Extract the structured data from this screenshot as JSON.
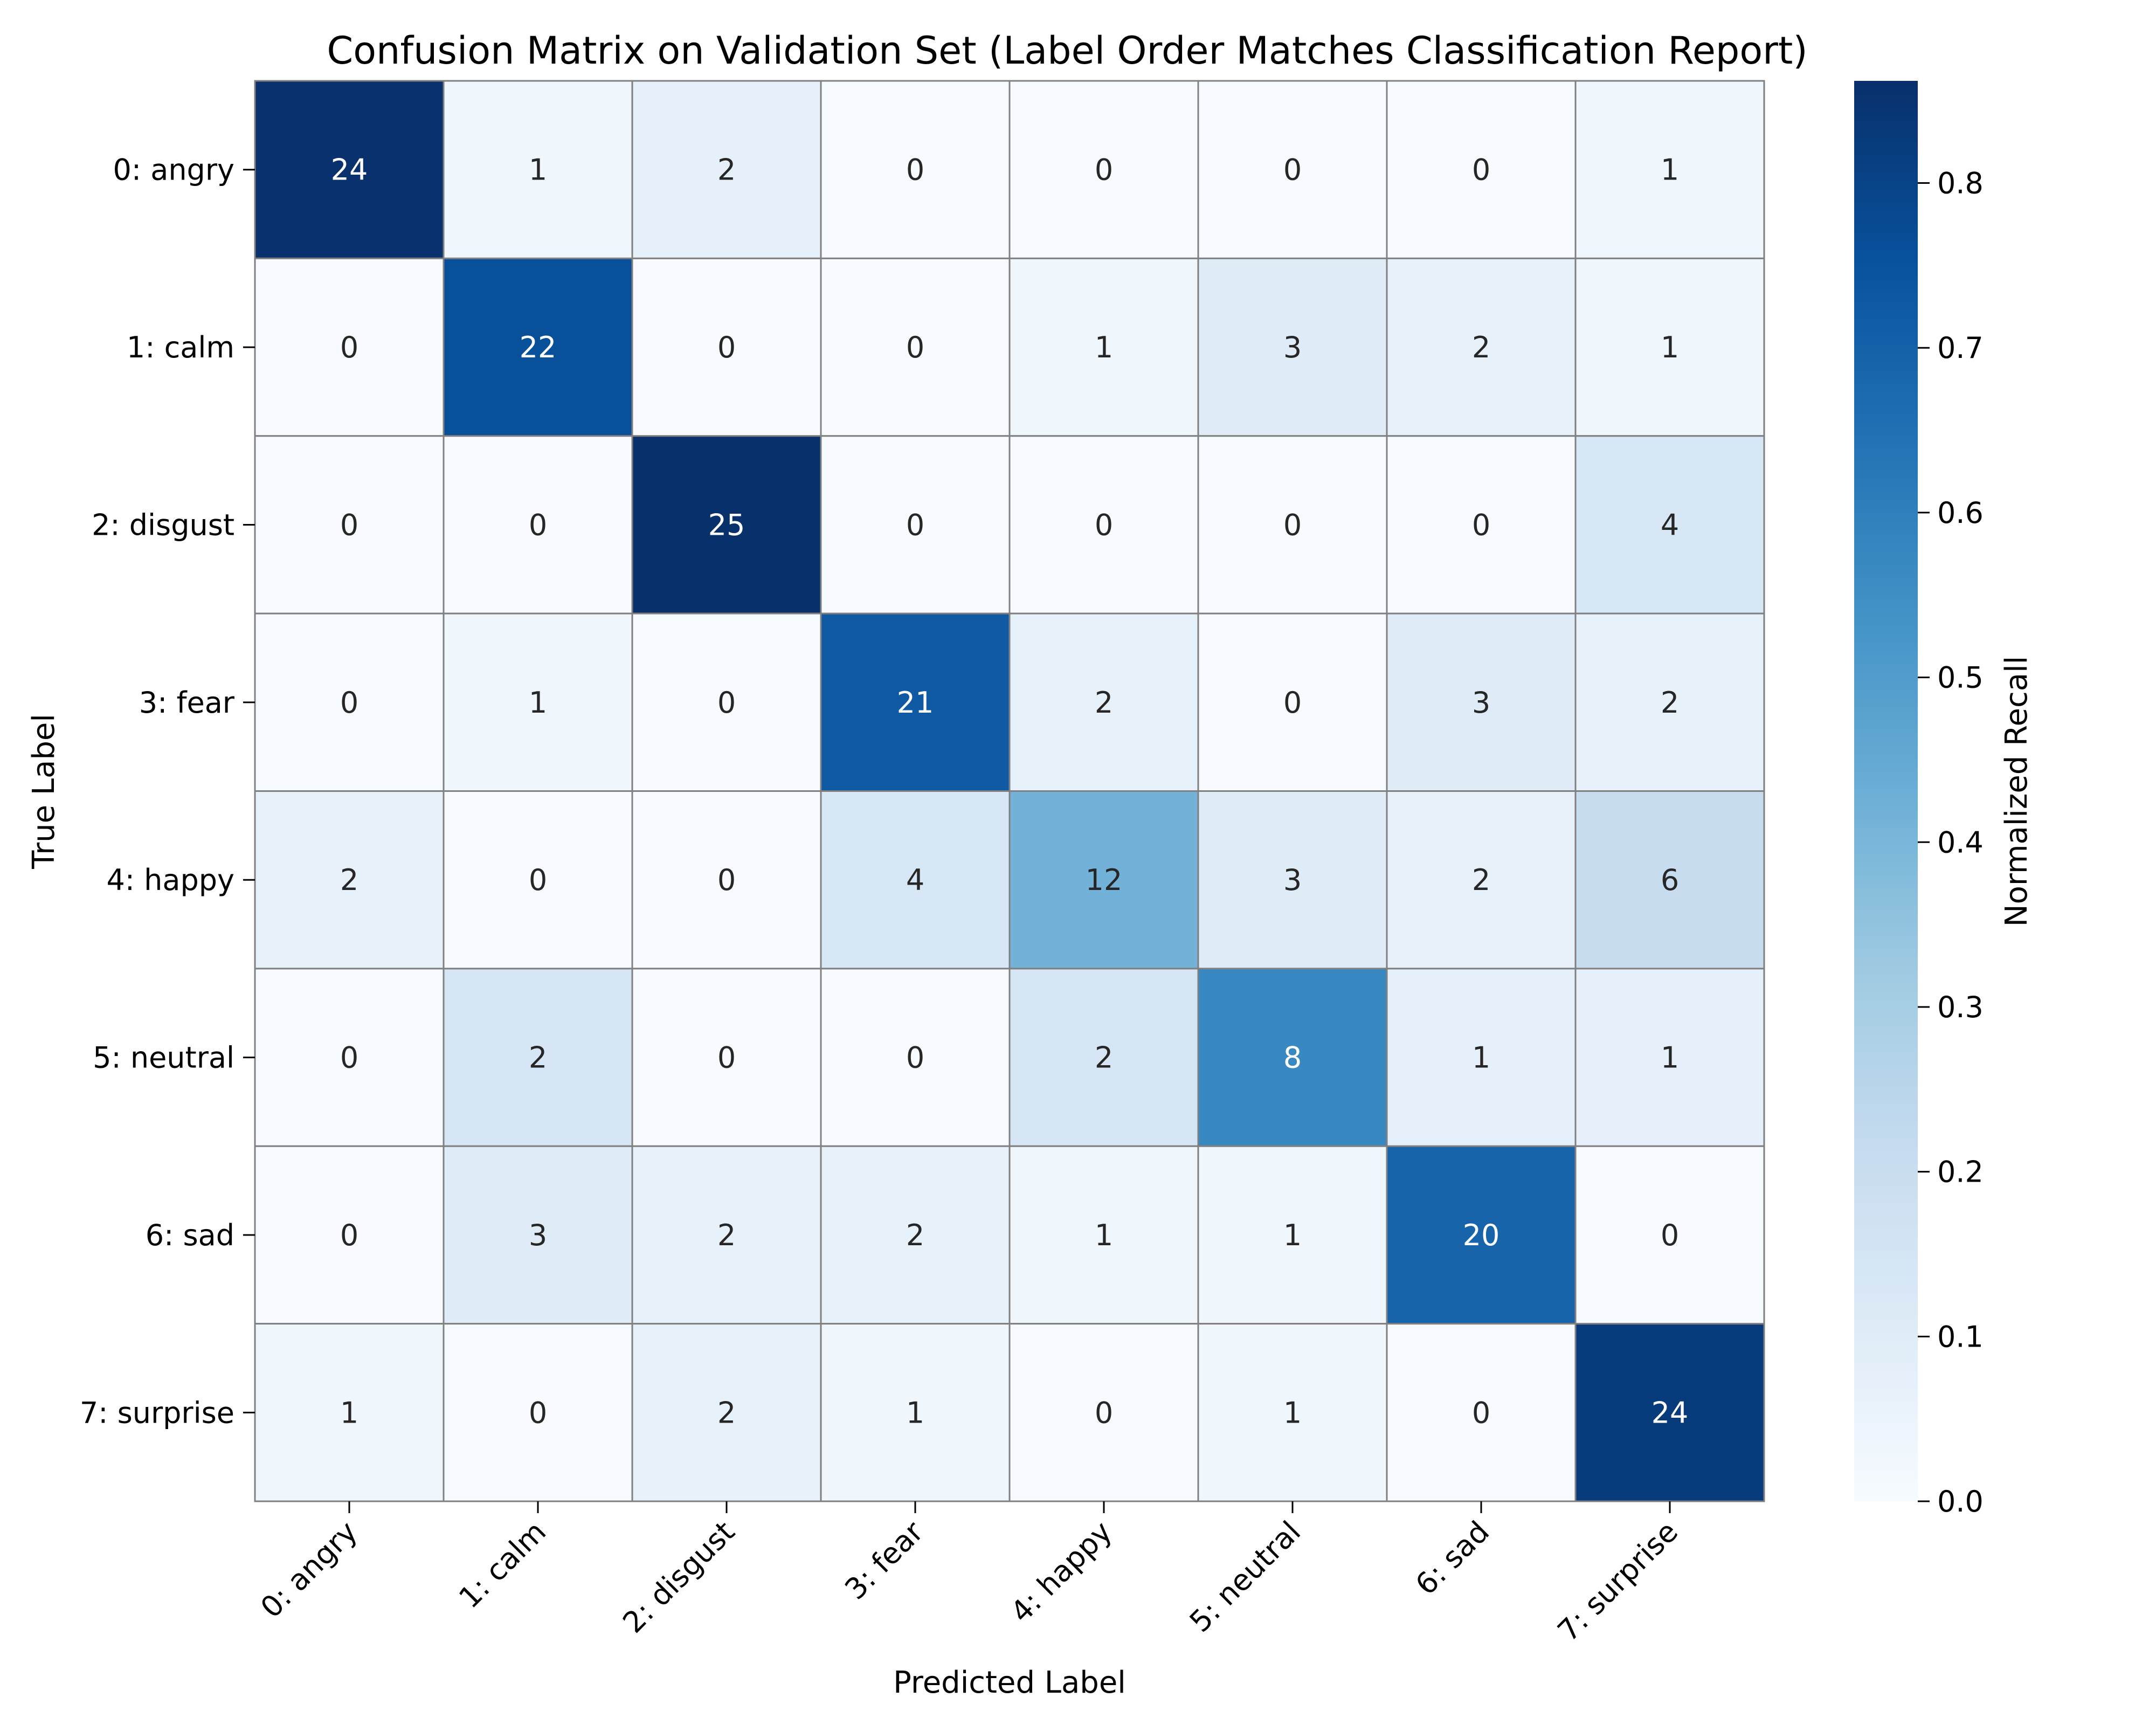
{
  "chart_data": {
    "type": "heatmap",
    "title": "Confusion Matrix on Validation Set (Label Order Matches Classification Report)",
    "xlabel": "Predicted Label",
    "ylabel": "True Label",
    "x_categories": [
      "0: angry",
      "1: calm",
      "2: disgust",
      "3: fear",
      "4: happy",
      "5: neutral",
      "6: sad",
      "7: surprise"
    ],
    "y_categories": [
      "0: angry",
      "1: calm",
      "2: disgust",
      "3: fear",
      "4: happy",
      "5: neutral",
      "6: sad",
      "7: surprise"
    ],
    "values": [
      [
        24,
        1,
        2,
        0,
        0,
        0,
        0,
        1
      ],
      [
        0,
        22,
        0,
        0,
        1,
        3,
        2,
        1
      ],
      [
        0,
        0,
        25,
        0,
        0,
        0,
        0,
        4
      ],
      [
        0,
        1,
        0,
        21,
        2,
        0,
        3,
        2
      ],
      [
        2,
        0,
        0,
        4,
        12,
        3,
        2,
        6
      ],
      [
        0,
        2,
        0,
        0,
        2,
        8,
        1,
        1
      ],
      [
        0,
        3,
        2,
        2,
        1,
        1,
        20,
        0
      ],
      [
        1,
        0,
        2,
        1,
        0,
        1,
        0,
        24
      ]
    ],
    "colorbar": {
      "label": "Normalized Recall",
      "range": [
        0,
        0.862
      ],
      "ticks": [
        "0.0",
        "0.1",
        "0.2",
        "0.3",
        "0.4",
        "0.5",
        "0.6",
        "0.7",
        "0.8"
      ],
      "colormap": "Blues"
    },
    "grid": true,
    "colors": {
      "low": "#f7fbff",
      "high": "#08306b",
      "cell_border": "#808080"
    }
  }
}
